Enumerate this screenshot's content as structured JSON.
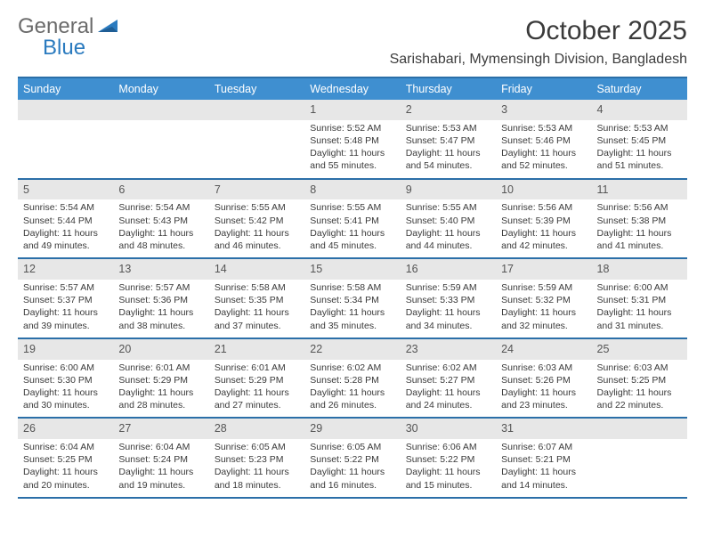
{
  "brand": {
    "word1": "General",
    "word2": "Blue"
  },
  "title": "October 2025",
  "location": "Sarishabari, Mymensingh Division, Bangladesh",
  "colors": {
    "header_bar": "#3f8fd0",
    "border": "#2b6fa8",
    "daynum_bg": "#e7e7e7",
    "text": "#3a3a3a",
    "brand_gray": "#6b6b6b",
    "brand_blue": "#2b7bbf",
    "background": "#ffffff"
  },
  "fonts": {
    "title_size": 30,
    "location_size": 16,
    "dow_size": 12.5,
    "cell_size": 10.5,
    "daynum_size": 12.5
  },
  "dow": [
    "Sunday",
    "Monday",
    "Tuesday",
    "Wednesday",
    "Thursday",
    "Friday",
    "Saturday"
  ],
  "weeks": [
    [
      {
        "n": "",
        "sr": "",
        "ss": "",
        "dl": ""
      },
      {
        "n": "",
        "sr": "",
        "ss": "",
        "dl": ""
      },
      {
        "n": "",
        "sr": "",
        "ss": "",
        "dl": ""
      },
      {
        "n": "1",
        "sr": "5:52 AM",
        "ss": "5:48 PM",
        "dl": "11 hours and 55 minutes."
      },
      {
        "n": "2",
        "sr": "5:53 AM",
        "ss": "5:47 PM",
        "dl": "11 hours and 54 minutes."
      },
      {
        "n": "3",
        "sr": "5:53 AM",
        "ss": "5:46 PM",
        "dl": "11 hours and 52 minutes."
      },
      {
        "n": "4",
        "sr": "5:53 AM",
        "ss": "5:45 PM",
        "dl": "11 hours and 51 minutes."
      }
    ],
    [
      {
        "n": "5",
        "sr": "5:54 AM",
        "ss": "5:44 PM",
        "dl": "11 hours and 49 minutes."
      },
      {
        "n": "6",
        "sr": "5:54 AM",
        "ss": "5:43 PM",
        "dl": "11 hours and 48 minutes."
      },
      {
        "n": "7",
        "sr": "5:55 AM",
        "ss": "5:42 PM",
        "dl": "11 hours and 46 minutes."
      },
      {
        "n": "8",
        "sr": "5:55 AM",
        "ss": "5:41 PM",
        "dl": "11 hours and 45 minutes."
      },
      {
        "n": "9",
        "sr": "5:55 AM",
        "ss": "5:40 PM",
        "dl": "11 hours and 44 minutes."
      },
      {
        "n": "10",
        "sr": "5:56 AM",
        "ss": "5:39 PM",
        "dl": "11 hours and 42 minutes."
      },
      {
        "n": "11",
        "sr": "5:56 AM",
        "ss": "5:38 PM",
        "dl": "11 hours and 41 minutes."
      }
    ],
    [
      {
        "n": "12",
        "sr": "5:57 AM",
        "ss": "5:37 PM",
        "dl": "11 hours and 39 minutes."
      },
      {
        "n": "13",
        "sr": "5:57 AM",
        "ss": "5:36 PM",
        "dl": "11 hours and 38 minutes."
      },
      {
        "n": "14",
        "sr": "5:58 AM",
        "ss": "5:35 PM",
        "dl": "11 hours and 37 minutes."
      },
      {
        "n": "15",
        "sr": "5:58 AM",
        "ss": "5:34 PM",
        "dl": "11 hours and 35 minutes."
      },
      {
        "n": "16",
        "sr": "5:59 AM",
        "ss": "5:33 PM",
        "dl": "11 hours and 34 minutes."
      },
      {
        "n": "17",
        "sr": "5:59 AM",
        "ss": "5:32 PM",
        "dl": "11 hours and 32 minutes."
      },
      {
        "n": "18",
        "sr": "6:00 AM",
        "ss": "5:31 PM",
        "dl": "11 hours and 31 minutes."
      }
    ],
    [
      {
        "n": "19",
        "sr": "6:00 AM",
        "ss": "5:30 PM",
        "dl": "11 hours and 30 minutes."
      },
      {
        "n": "20",
        "sr": "6:01 AM",
        "ss": "5:29 PM",
        "dl": "11 hours and 28 minutes."
      },
      {
        "n": "21",
        "sr": "6:01 AM",
        "ss": "5:29 PM",
        "dl": "11 hours and 27 minutes."
      },
      {
        "n": "22",
        "sr": "6:02 AM",
        "ss": "5:28 PM",
        "dl": "11 hours and 26 minutes."
      },
      {
        "n": "23",
        "sr": "6:02 AM",
        "ss": "5:27 PM",
        "dl": "11 hours and 24 minutes."
      },
      {
        "n": "24",
        "sr": "6:03 AM",
        "ss": "5:26 PM",
        "dl": "11 hours and 23 minutes."
      },
      {
        "n": "25",
        "sr": "6:03 AM",
        "ss": "5:25 PM",
        "dl": "11 hours and 22 minutes."
      }
    ],
    [
      {
        "n": "26",
        "sr": "6:04 AM",
        "ss": "5:25 PM",
        "dl": "11 hours and 20 minutes."
      },
      {
        "n": "27",
        "sr": "6:04 AM",
        "ss": "5:24 PM",
        "dl": "11 hours and 19 minutes."
      },
      {
        "n": "28",
        "sr": "6:05 AM",
        "ss": "5:23 PM",
        "dl": "11 hours and 18 minutes."
      },
      {
        "n": "29",
        "sr": "6:05 AM",
        "ss": "5:22 PM",
        "dl": "11 hours and 16 minutes."
      },
      {
        "n": "30",
        "sr": "6:06 AM",
        "ss": "5:22 PM",
        "dl": "11 hours and 15 minutes."
      },
      {
        "n": "31",
        "sr": "6:07 AM",
        "ss": "5:21 PM",
        "dl": "11 hours and 14 minutes."
      },
      {
        "n": "",
        "sr": "",
        "ss": "",
        "dl": ""
      }
    ]
  ],
  "labels": {
    "sunrise": "Sunrise: ",
    "sunset": "Sunset: ",
    "daylight": "Daylight: "
  }
}
